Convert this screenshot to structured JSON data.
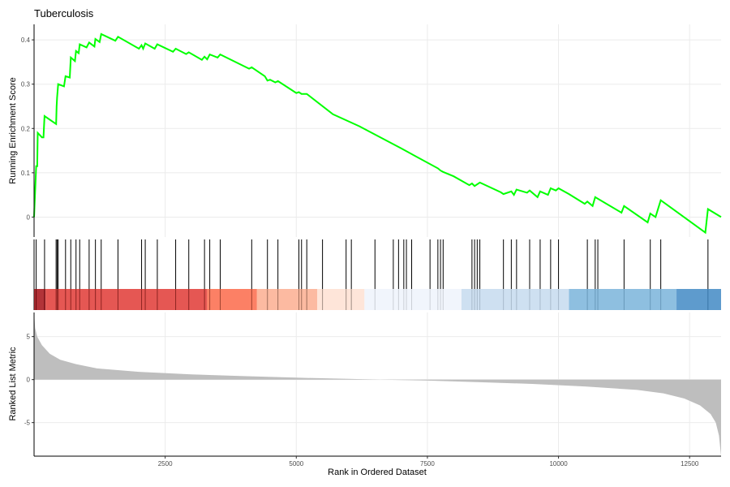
{
  "chart_data": {
    "type": "line",
    "title": "Tuberculosis",
    "xlabel": "Rank in Ordered Dataset",
    "x_ticks": [
      2500,
      5000,
      7500,
      10000,
      12500
    ],
    "xlim": [
      0,
      13100
    ],
    "panels": {
      "enrichment": {
        "ylabel": "Running Enrichment Score",
        "ylim": [
          -0.045,
          0.435
        ],
        "y_ticks": [
          0.0,
          0.1,
          0.2,
          0.3,
          0.4
        ],
        "line_color": "#00ff00",
        "points": [
          [
            0,
            0.0
          ],
          [
            40,
            0.115
          ],
          [
            60,
            0.115
          ],
          [
            70,
            0.19
          ],
          [
            150,
            0.18
          ],
          [
            180,
            0.18
          ],
          [
            200,
            0.228
          ],
          [
            420,
            0.21
          ],
          [
            430,
            0.25
          ],
          [
            440,
            0.27
          ],
          [
            460,
            0.3
          ],
          [
            570,
            0.295
          ],
          [
            600,
            0.318
          ],
          [
            680,
            0.315
          ],
          [
            700,
            0.36
          ],
          [
            780,
            0.352
          ],
          [
            800,
            0.375
          ],
          [
            850,
            0.37
          ],
          [
            870,
            0.39
          ],
          [
            1000,
            0.383
          ],
          [
            1050,
            0.394
          ],
          [
            1150,
            0.385
          ],
          [
            1170,
            0.402
          ],
          [
            1250,
            0.395
          ],
          [
            1280,
            0.413
          ],
          [
            1550,
            0.398
          ],
          [
            1600,
            0.407
          ],
          [
            2000,
            0.38
          ],
          [
            2050,
            0.388
          ],
          [
            2080,
            0.38
          ],
          [
            2120,
            0.392
          ],
          [
            2300,
            0.38
          ],
          [
            2350,
            0.39
          ],
          [
            2650,
            0.373
          ],
          [
            2700,
            0.38
          ],
          [
            2900,
            0.368
          ],
          [
            2950,
            0.372
          ],
          [
            3200,
            0.355
          ],
          [
            3250,
            0.362
          ],
          [
            3300,
            0.356
          ],
          [
            3350,
            0.367
          ],
          [
            3500,
            0.36
          ],
          [
            3550,
            0.367
          ],
          [
            4100,
            0.335
          ],
          [
            4150,
            0.338
          ],
          [
            4400,
            0.318
          ],
          [
            4450,
            0.308
          ],
          [
            4500,
            0.31
          ],
          [
            4600,
            0.304
          ],
          [
            4650,
            0.307
          ],
          [
            5000,
            0.28
          ],
          [
            5050,
            0.282
          ],
          [
            5100,
            0.278
          ],
          [
            5200,
            0.278
          ],
          [
            5700,
            0.232
          ],
          [
            6200,
            0.205
          ],
          [
            7000,
            0.155
          ],
          [
            7700,
            0.11
          ],
          [
            7750,
            0.105
          ],
          [
            7800,
            0.102
          ],
          [
            8000,
            0.092
          ],
          [
            8300,
            0.072
          ],
          [
            8350,
            0.076
          ],
          [
            8400,
            0.07
          ],
          [
            8500,
            0.078
          ],
          [
            8900,
            0.056
          ],
          [
            8950,
            0.052
          ],
          [
            9100,
            0.058
          ],
          [
            9150,
            0.05
          ],
          [
            9200,
            0.062
          ],
          [
            9400,
            0.055
          ],
          [
            9450,
            0.06
          ],
          [
            9600,
            0.045
          ],
          [
            9650,
            0.058
          ],
          [
            9800,
            0.05
          ],
          [
            9850,
            0.065
          ],
          [
            9950,
            0.06
          ],
          [
            10000,
            0.065
          ],
          [
            10200,
            0.052
          ],
          [
            10500,
            0.03
          ],
          [
            10550,
            0.035
          ],
          [
            10650,
            0.025
          ],
          [
            10700,
            0.045
          ],
          [
            11200,
            0.01
          ],
          [
            11250,
            0.025
          ],
          [
            11700,
            -0.012
          ],
          [
            11750,
            0.008
          ],
          [
            11850,
            0.0
          ],
          [
            11950,
            0.038
          ],
          [
            12800,
            -0.035
          ],
          [
            12850,
            0.018
          ],
          [
            13100,
            0.0
          ]
        ]
      },
      "hits": {
        "positions": [
          0,
          40,
          200,
          420,
          440,
          460,
          600,
          700,
          800,
          870,
          1050,
          1170,
          1280,
          1600,
          2050,
          2120,
          2350,
          2700,
          2950,
          3250,
          3350,
          3550,
          4150,
          4450,
          4650,
          5050,
          5100,
          5200,
          5500,
          5950,
          6050,
          6500,
          6850,
          6950,
          7050,
          7100,
          7200,
          7550,
          7700,
          7750,
          7800,
          8350,
          8400,
          8450,
          8500,
          8950,
          9100,
          9200,
          9450,
          9650,
          9850,
          10000,
          10550,
          10700,
          10750,
          11250,
          11750,
          11950,
          12850
        ],
        "color": "#000000"
      },
      "color_band": {
        "segments": [
          {
            "from": 0,
            "to": 220,
            "color": "#a50f15"
          },
          {
            "from": 220,
            "to": 3300,
            "color": "#e03a35"
          },
          {
            "from": 3300,
            "to": 4250,
            "color": "#fb6a4a"
          },
          {
            "from": 4250,
            "to": 5400,
            "color": "#fcae91"
          },
          {
            "from": 5400,
            "to": 6300,
            "color": "#fee0d2"
          },
          {
            "from": 6300,
            "to": 8150,
            "color": "#eef3fb"
          },
          {
            "from": 8150,
            "to": 10200,
            "color": "#c6dbef"
          },
          {
            "from": 10200,
            "to": 12250,
            "color": "#7ab4da"
          },
          {
            "from": 12250,
            "to": 13100,
            "color": "#4289c4"
          }
        ]
      },
      "ranked_metric": {
        "ylabel": "Ranked List Metric",
        "ylim": [
          -8.9,
          7.8
        ],
        "y_ticks": [
          -5,
          0,
          5
        ],
        "fill_color": "#bebebe",
        "profile": [
          [
            0,
            7.8
          ],
          [
            20,
            6.0
          ],
          [
            60,
            5.0
          ],
          [
            150,
            4.0
          ],
          [
            300,
            3.0
          ],
          [
            500,
            2.3
          ],
          [
            800,
            1.8
          ],
          [
            1200,
            1.3
          ],
          [
            2000,
            0.9
          ],
          [
            3000,
            0.6
          ],
          [
            4000,
            0.4
          ],
          [
            5000,
            0.22
          ],
          [
            6000,
            0.08
          ],
          [
            6600,
            0.0
          ],
          [
            7500,
            -0.12
          ],
          [
            8500,
            -0.3
          ],
          [
            9500,
            -0.5
          ],
          [
            10500,
            -0.8
          ],
          [
            11500,
            -1.2
          ],
          [
            12000,
            -1.6
          ],
          [
            12400,
            -2.2
          ],
          [
            12700,
            -3.0
          ],
          [
            12900,
            -4.0
          ],
          [
            13000,
            -5.0
          ],
          [
            13060,
            -6.5
          ],
          [
            13100,
            -8.9
          ]
        ]
      }
    }
  }
}
